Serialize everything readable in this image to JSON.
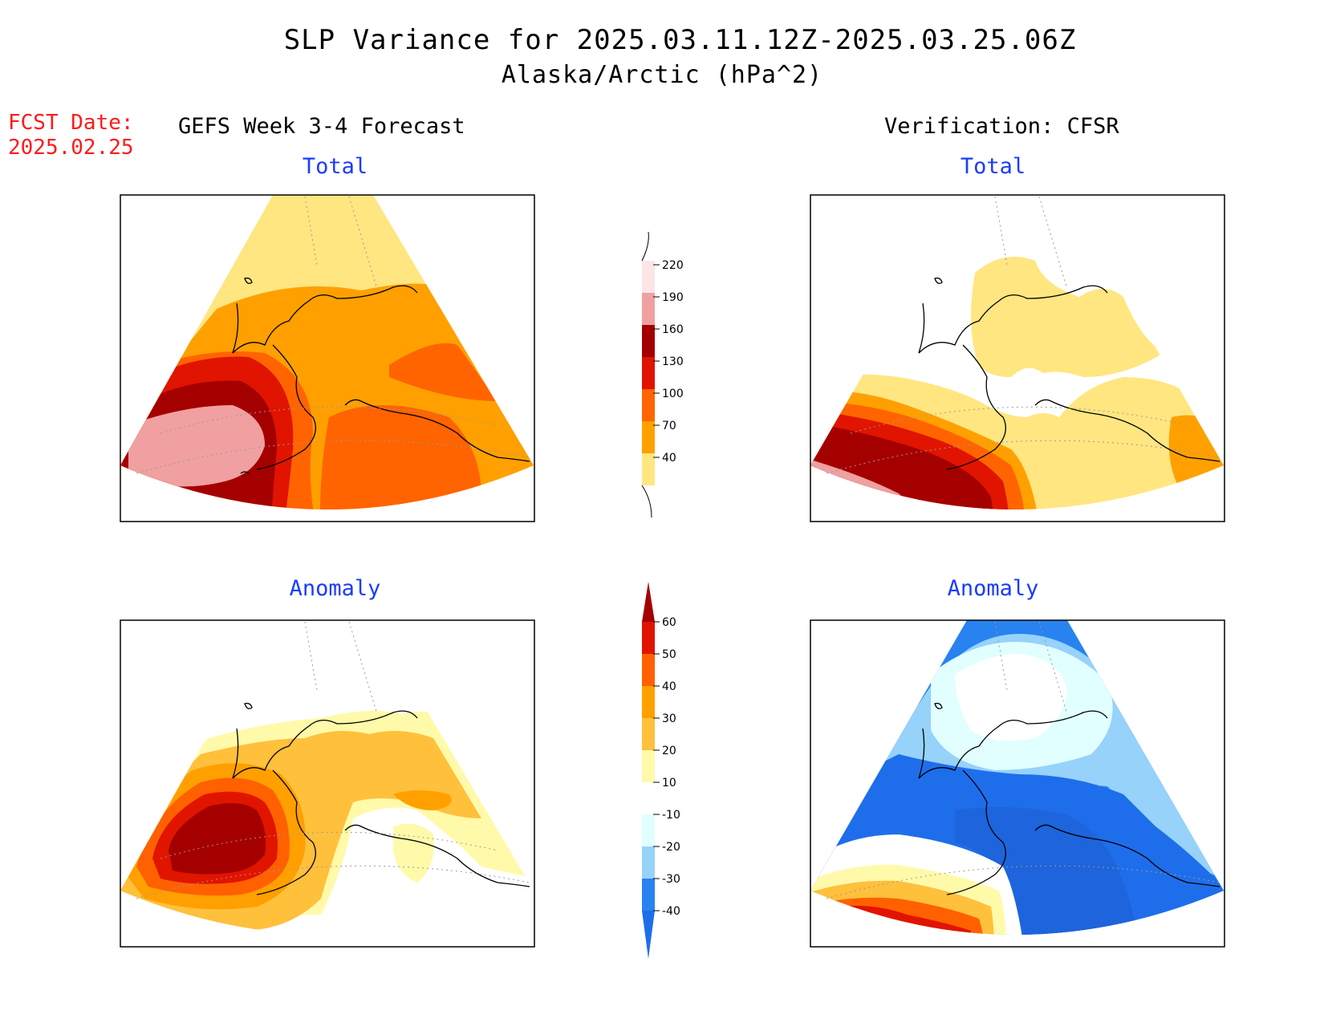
{
  "header": {
    "title_line1": "SLP Variance for 2025.03.11.12Z-2025.03.25.06Z",
    "title_line2": "Alaska/Arctic (hPa^2)",
    "fcst_label": "FCST Date:",
    "fcst_date": "2025.02.25"
  },
  "columns": {
    "left": "GEFS Week 3-4 Forecast",
    "right": "Verification: CFSR"
  },
  "panels": [
    {
      "title": "Total",
      "source": "GEFS Week 3-4 Forecast",
      "field": "Total"
    },
    {
      "title": "Total",
      "source": "Verification: CFSR",
      "field": "Total"
    },
    {
      "title": "Anomaly",
      "source": "GEFS Week 3-4 Forecast",
      "field": "Anomaly"
    },
    {
      "title": "Anomaly",
      "source": "Verification: CFSR",
      "field": "Anomaly"
    }
  ],
  "colorbars": {
    "total": {
      "levels": [
        "40",
        "70",
        "100",
        "130",
        "160",
        "190",
        "220"
      ],
      "colors": [
        "#ffe680",
        "#ffa000",
        "#ff6400",
        "#e01400",
        "#a50000",
        "#f0a0a0",
        "#fde5e5"
      ]
    },
    "anomaly": {
      "levels": [
        "-40",
        "-30",
        "-20",
        "-10",
        "10",
        "20",
        "30",
        "40",
        "50",
        "60"
      ],
      "colors": [
        "#1e6eeb",
        "#2882f0",
        "#96d2fa",
        "#e1ffff",
        "#ffffff",
        "#fffaaa",
        "#ffc03c",
        "#ffa000",
        "#ff6000",
        "#e11400",
        "#a50000"
      ]
    }
  }
}
